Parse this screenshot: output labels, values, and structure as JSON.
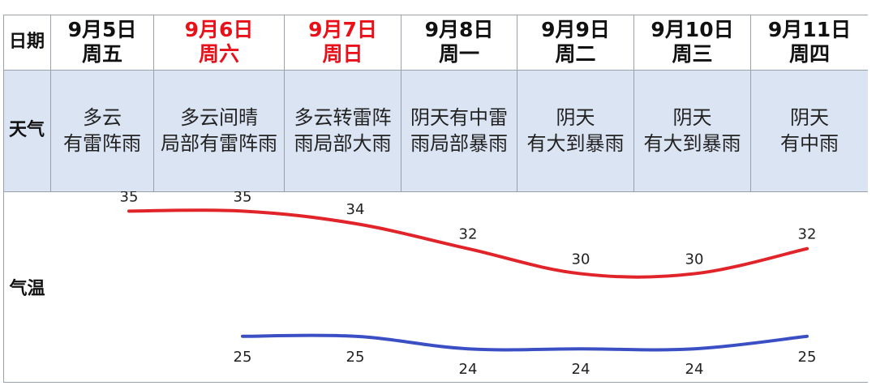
{
  "table": {
    "row_labels": {
      "date": "日期",
      "weather": "天气",
      "temp": "气温"
    },
    "days": [
      {
        "date": "9月5日",
        "weekday": "周五",
        "weather_1": "多云",
        "weather_2": "有雷阵雨"
      },
      {
        "date": "9月6日",
        "weekday": "周六",
        "weather_1": "多云间晴",
        "weather_2": "局部有雷阵雨"
      },
      {
        "date": "9月7日",
        "weekday": "周日",
        "weather_1": "多云转雷阵",
        "weather_2": "雨局部大雨"
      },
      {
        "date": "9月8日",
        "weekday": "周一",
        "weather_1": "阴天有中雷",
        "weather_2": "雨局部暴雨"
      },
      {
        "date": "9月9日",
        "weekday": "周二",
        "weather_1": "阴天",
        "weather_2": "有大到暴雨"
      },
      {
        "date": "9月10日",
        "weekday": "周三",
        "weather_1": "阴天",
        "weather_2": "有大到暴雨"
      },
      {
        "date": "9月11日",
        "weekday": "周四",
        "weather_1": "阴天",
        "weather_2": "有中雨"
      }
    ]
  },
  "colors": {
    "weekend": "#e8111a",
    "high_line": "#e0242a",
    "low_line": "#3a4fc4",
    "weather_bg": "#dbe4f3"
  },
  "chart_data": {
    "type": "line",
    "categories": [
      "9月5日",
      "9月6日",
      "9月7日",
      "9月8日",
      "9月9日",
      "9月10日",
      "9月11日"
    ],
    "series": [
      {
        "values": [
          35,
          35,
          34,
          32,
          30,
          30,
          32
        ]
      },
      {
        "values": [
          null,
          25,
          25,
          24,
          24,
          24,
          25
        ]
      }
    ],
    "title": "",
    "xlabel": "",
    "ylabel": "气温",
    "ylim": [
      20,
      38
    ]
  }
}
